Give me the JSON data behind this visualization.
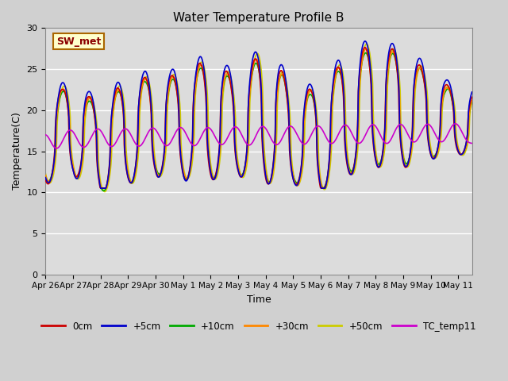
{
  "title": "Water Temperature Profile B",
  "xlabel": "Time",
  "ylabel": "Temperature(C)",
  "ylim": [
    0,
    30
  ],
  "yticks": [
    0,
    5,
    10,
    15,
    20,
    25,
    30
  ],
  "fig_bg": "#d8d8d8",
  "plot_bg": "#dcdcdc",
  "series": {
    "0cm": {
      "color": "#cc0000",
      "lw": 1.2
    },
    "+5cm": {
      "color": "#0000cc",
      "lw": 1.2
    },
    "+10cm": {
      "color": "#00aa00",
      "lw": 1.2
    },
    "+30cm": {
      "color": "#ff8800",
      "lw": 1.2
    },
    "+50cm": {
      "color": "#cccc00",
      "lw": 1.2
    },
    "TC_temp11": {
      "color": "#cc00cc",
      "lw": 1.2
    }
  },
  "legend_label": "SW_met",
  "tick_labels": [
    "Apr 26",
    "Apr 27",
    "Apr 28",
    "Apr 29",
    "Apr 30",
    "May 1",
    "May 2",
    "May 3",
    "May 4",
    "May 5",
    "May 6",
    "May 7",
    "May 8",
    "May 9",
    "May 10",
    "May 11"
  ],
  "tick_positions": [
    0,
    1,
    2,
    3,
    4,
    5,
    6,
    7,
    8,
    9,
    10,
    11,
    12,
    13,
    14,
    15
  ]
}
